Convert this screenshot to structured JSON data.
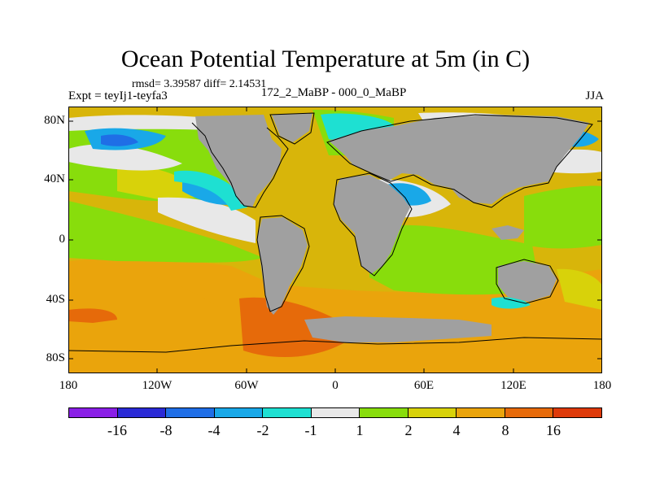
{
  "title": "Ocean Potential Temperature at 5m (in C)",
  "stats": "rmsd= 3.39587 diff= 2.14531",
  "experiment": "Expt = teyIj1-teyfa3",
  "subtitle": "172_2_MaBP - 000_0_MaBP",
  "season": "JJA",
  "y_ticks": [
    "80N",
    "40N",
    "0",
    "40S",
    "80S"
  ],
  "x_ticks": [
    "180",
    "120W",
    "60W",
    "0",
    "60E",
    "120E",
    "180"
  ],
  "colorbar": {
    "labels": [
      "-16",
      "-8",
      "-4",
      "-2",
      "-1",
      "1",
      "2",
      "4",
      "8",
      "16"
    ],
    "colors": [
      "#8a1fe6",
      "#2a2ad6",
      "#1f6ee6",
      "#19a8e8",
      "#1ee0d2",
      "#e8e8e8",
      "#88dd0c",
      "#d8d20a",
      "#eaa40c",
      "#e66a0a",
      "#de3a0a"
    ]
  },
  "land_color": "#a0a0a0",
  "ocean_base_color": "#d8b50a",
  "map_type": "global equirectangular anomaly map, land masked grey, with coastline outlines"
}
